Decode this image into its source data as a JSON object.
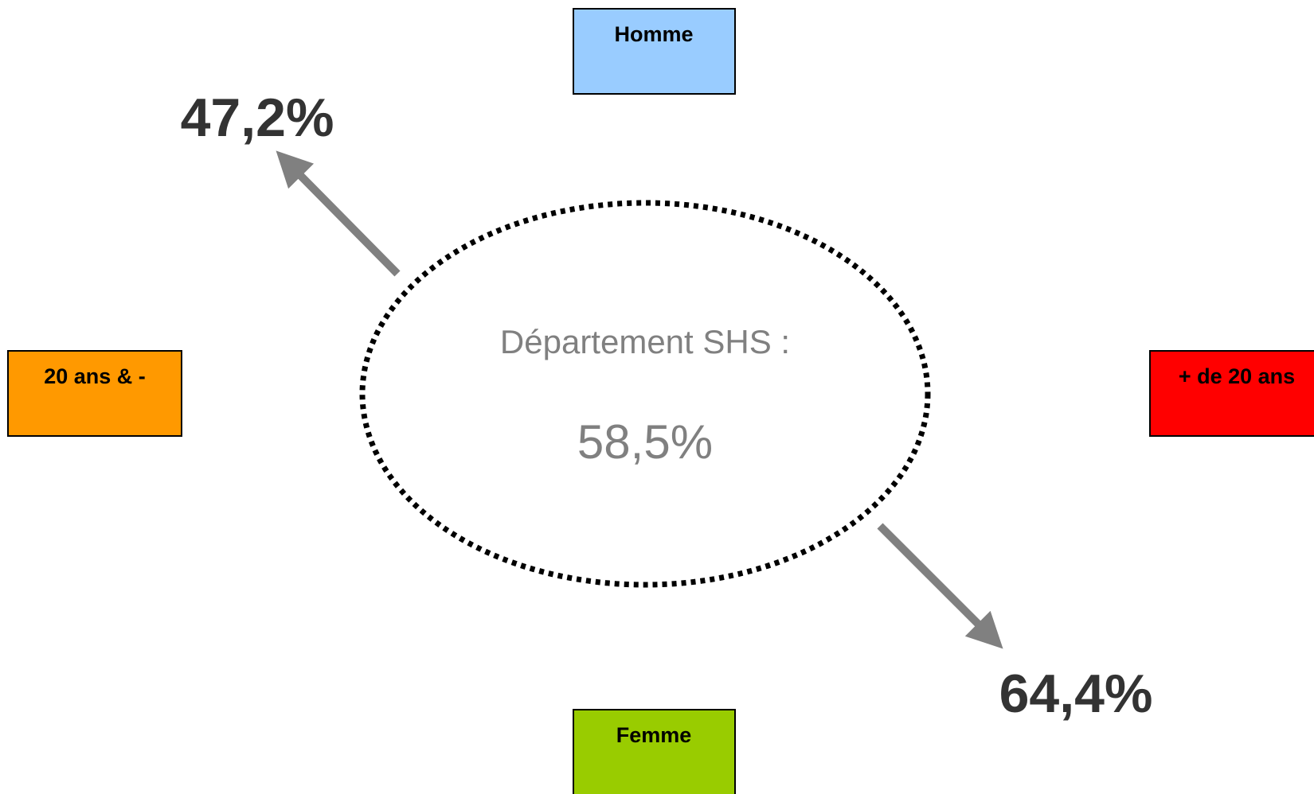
{
  "nodes": [
    {
      "label": "Homme"
    },
    {
      "label": "20 ans & -"
    },
    {
      "label": "+ de 20 ans"
    },
    {
      "label": "Femme"
    }
  ],
  "center": {
    "title": "Département SHS :",
    "value": "58,5%"
  },
  "annotations": [
    "47,2%",
    "64,4%"
  ]
}
